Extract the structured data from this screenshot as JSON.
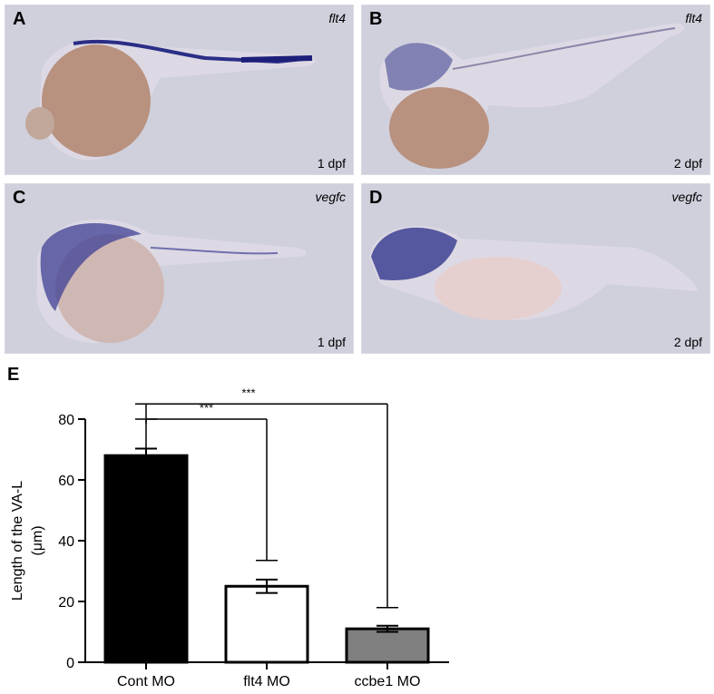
{
  "panels": [
    {
      "letter": "A",
      "gene": "flt4",
      "stage": "1 dpf"
    },
    {
      "letter": "B",
      "gene": "flt4",
      "stage": "2 dpf"
    },
    {
      "letter": "C",
      "gene": "vegfc",
      "stage": "1 dpf"
    },
    {
      "letter": "D",
      "gene": "vegfc",
      "stage": "2 dpf"
    }
  ],
  "panel_e_letter": "E",
  "colors": {
    "bg": "#cfd0dc",
    "yolk": "#c79a82",
    "stain": "#2b2e86",
    "body": "#ddd9e4"
  },
  "chart_data": {
    "type": "bar",
    "categories": [
      "Cont MO",
      "flt4 MO",
      "ccbe1 MO"
    ],
    "values": [
      68,
      25,
      11
    ],
    "errors": [
      2.3,
      2.2,
      1.0
    ],
    "bar_colors": [
      "#000000",
      "#ffffff",
      "#808080"
    ],
    "ylabel": "Length of the VA-L\n(μm)",
    "ylim": [
      0,
      80
    ],
    "yticks": [
      0,
      20,
      40,
      60,
      80
    ],
    "significance": [
      {
        "from": "Cont MO",
        "to": "flt4 MO",
        "label": "***"
      },
      {
        "from": "Cont MO",
        "to": "ccbe1 MO",
        "label": "***"
      }
    ]
  }
}
